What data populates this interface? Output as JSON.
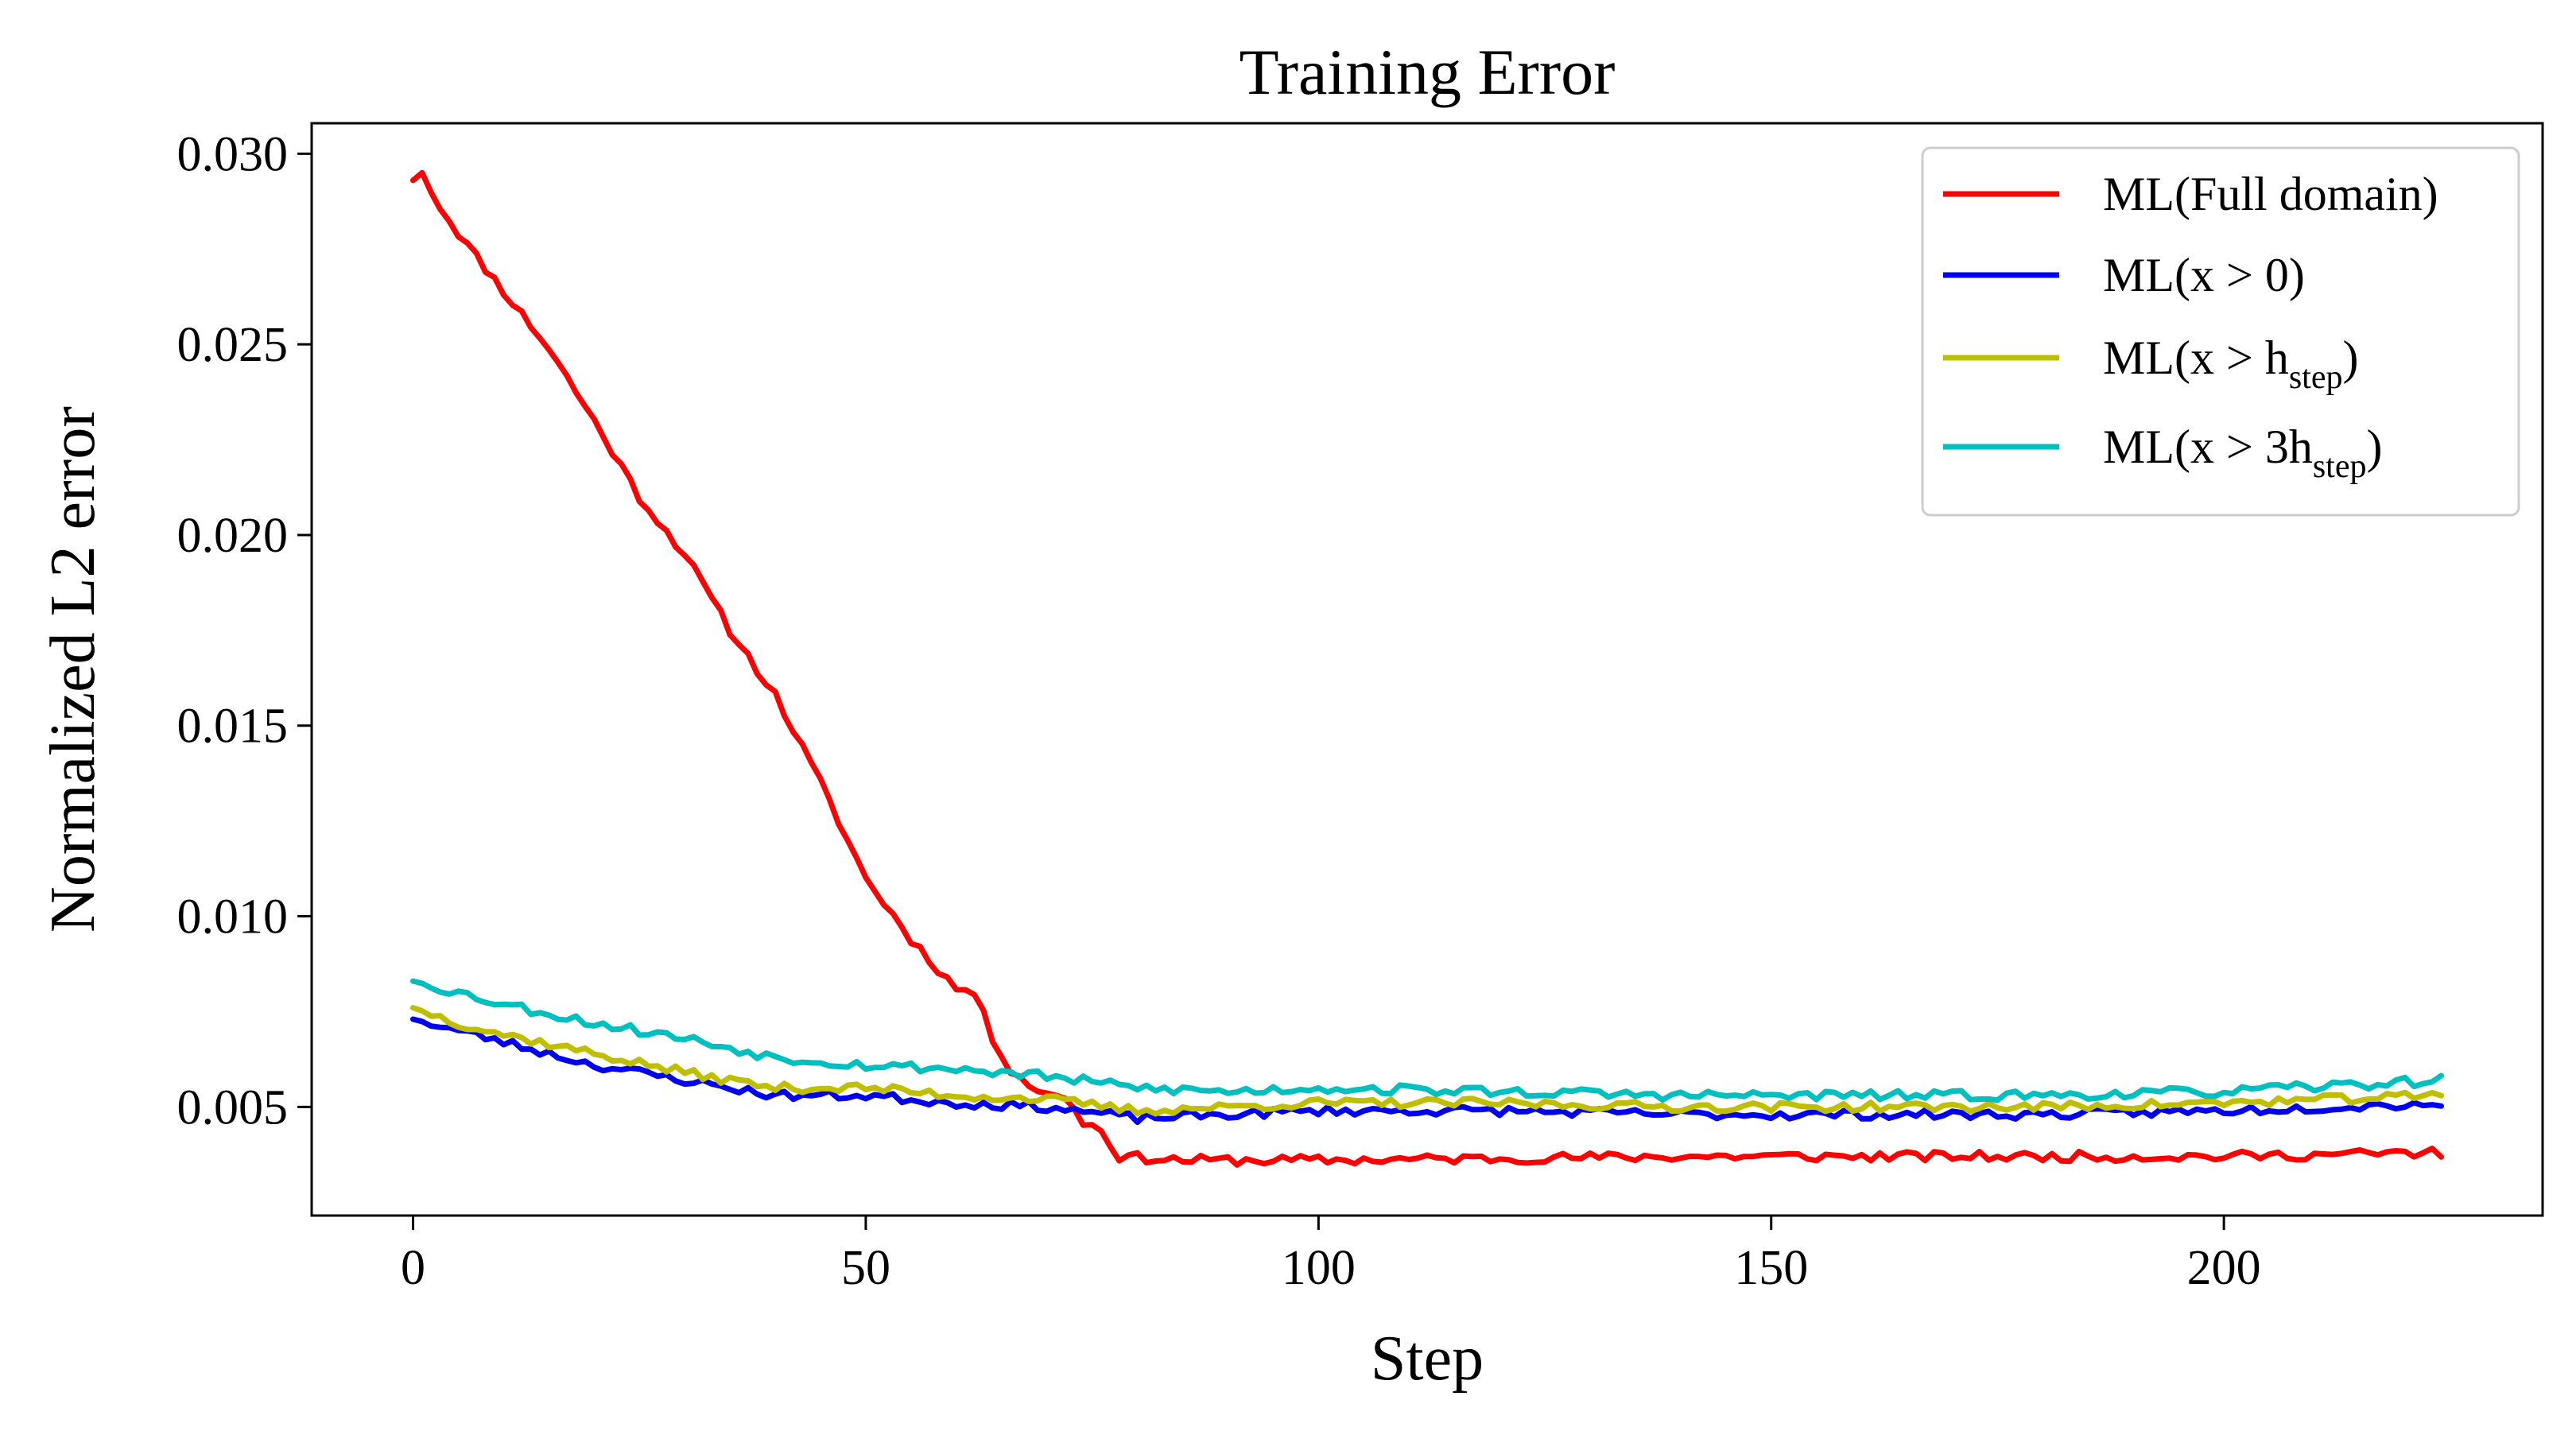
{
  "chart_data": {
    "type": "line",
    "title": "Training Error",
    "xlabel": "Step",
    "ylabel": "Normalized L2 error",
    "xlim": [
      -11.2,
      235.2
    ],
    "ylim": [
      0.00215,
      0.0308
    ],
    "xticks": [
      0,
      50,
      100,
      150,
      200
    ],
    "yticks": [
      0.005,
      0.01,
      0.015,
      0.02,
      0.025,
      0.03
    ],
    "xtick_labels": [
      "0",
      "50",
      "100",
      "150",
      "200"
    ],
    "ytick_labels": [
      "0.005",
      "0.010",
      "0.015",
      "0.020",
      "0.025",
      "0.030"
    ],
    "grid": false,
    "legend_position": "top-right",
    "legend": [
      {
        "main": "ML(Full domain)",
        "sub": "",
        "tail": ""
      },
      {
        "main": "ML(x > 0)",
        "sub": "",
        "tail": ""
      },
      {
        "main": "ML(x > h",
        "sub": "step",
        "tail": ")"
      },
      {
        "main": "ML(x > 3h",
        "sub": "step",
        "tail": ")"
      }
    ],
    "series": [
      {
        "color": "#ff0000",
        "keypoints": [
          [
            0,
            0.0293
          ],
          [
            1,
            0.0295
          ],
          [
            3,
            0.0286
          ],
          [
            6,
            0.0276
          ],
          [
            10,
            0.0264
          ],
          [
            15,
            0.0249
          ],
          [
            20,
            0.023
          ],
          [
            25,
            0.021
          ],
          [
            30,
            0.0195
          ],
          [
            35,
            0.0175
          ],
          [
            40,
            0.0158
          ],
          [
            45,
            0.0135
          ],
          [
            50,
            0.011
          ],
          [
            55,
            0.0094
          ],
          [
            60,
            0.0081
          ],
          [
            62,
            0.008
          ],
          [
            64,
            0.0068
          ],
          [
            66,
            0.006
          ],
          [
            68,
            0.0056
          ],
          [
            70,
            0.0053
          ],
          [
            72,
            0.0053
          ],
          [
            74,
            0.0046
          ],
          [
            76,
            0.0044
          ],
          [
            78,
            0.0037
          ],
          [
            85,
            0.0036
          ],
          [
            100,
            0.0036
          ],
          [
            120,
            0.00365
          ],
          [
            140,
            0.0037
          ],
          [
            160,
            0.0037
          ],
          [
            180,
            0.0037
          ],
          [
            200,
            0.0037
          ],
          [
            224,
            0.0038
          ]
        ],
        "noise": 0.00013,
        "seed": 11
      },
      {
        "color": "#0000ee",
        "keypoints": [
          [
            0,
            0.0073
          ],
          [
            5,
            0.007
          ],
          [
            10,
            0.0067
          ],
          [
            20,
            0.0061
          ],
          [
            30,
            0.0057
          ],
          [
            40,
            0.0053
          ],
          [
            50,
            0.0053
          ],
          [
            60,
            0.0051
          ],
          [
            70,
            0.005
          ],
          [
            80,
            0.0047
          ],
          [
            90,
            0.0048
          ],
          [
            100,
            0.0049
          ],
          [
            120,
            0.0049
          ],
          [
            140,
            0.0048
          ],
          [
            160,
            0.0048
          ],
          [
            180,
            0.0048
          ],
          [
            200,
            0.0049
          ],
          [
            224,
            0.0051
          ]
        ],
        "noise": 0.00012,
        "seed": 23
      },
      {
        "color": "#bfbf00",
        "keypoints": [
          [
            0,
            0.0076
          ],
          [
            5,
            0.0072
          ],
          [
            10,
            0.0069
          ],
          [
            20,
            0.0064
          ],
          [
            30,
            0.0059
          ],
          [
            40,
            0.0055
          ],
          [
            50,
            0.0055
          ],
          [
            60,
            0.0053
          ],
          [
            70,
            0.0052
          ],
          [
            80,
            0.0049
          ],
          [
            90,
            0.005
          ],
          [
            100,
            0.0051
          ],
          [
            120,
            0.0051
          ],
          [
            140,
            0.005
          ],
          [
            160,
            0.005
          ],
          [
            180,
            0.005
          ],
          [
            200,
            0.0051
          ],
          [
            224,
            0.0053
          ]
        ],
        "noise": 0.00012,
        "seed": 37
      },
      {
        "color": "#00bfbf",
        "keypoints": [
          [
            0,
            0.0083
          ],
          [
            5,
            0.008
          ],
          [
            10,
            0.0077
          ],
          [
            20,
            0.0072
          ],
          [
            30,
            0.0068
          ],
          [
            40,
            0.0063
          ],
          [
            50,
            0.0061
          ],
          [
            60,
            0.006
          ],
          [
            70,
            0.0058
          ],
          [
            80,
            0.0055
          ],
          [
            90,
            0.0054
          ],
          [
            100,
            0.0055
          ],
          [
            120,
            0.0054
          ],
          [
            140,
            0.0053
          ],
          [
            160,
            0.0053
          ],
          [
            180,
            0.0053
          ],
          [
            200,
            0.0054
          ],
          [
            224,
            0.0057
          ]
        ],
        "noise": 0.00013,
        "seed": 53
      }
    ]
  }
}
